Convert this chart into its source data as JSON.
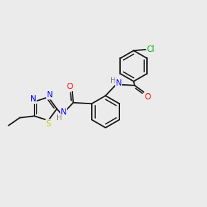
{
  "background_color": "#ebebeb",
  "bond_color": "#1a1a1a",
  "atom_colors": {
    "N": "#0000ff",
    "O": "#ff0000",
    "S": "#cccc00",
    "Cl": "#00aa00",
    "C": "#1a1a1a",
    "H": "#808080"
  },
  "figsize": [
    3.0,
    3.0
  ],
  "dpi": 100
}
